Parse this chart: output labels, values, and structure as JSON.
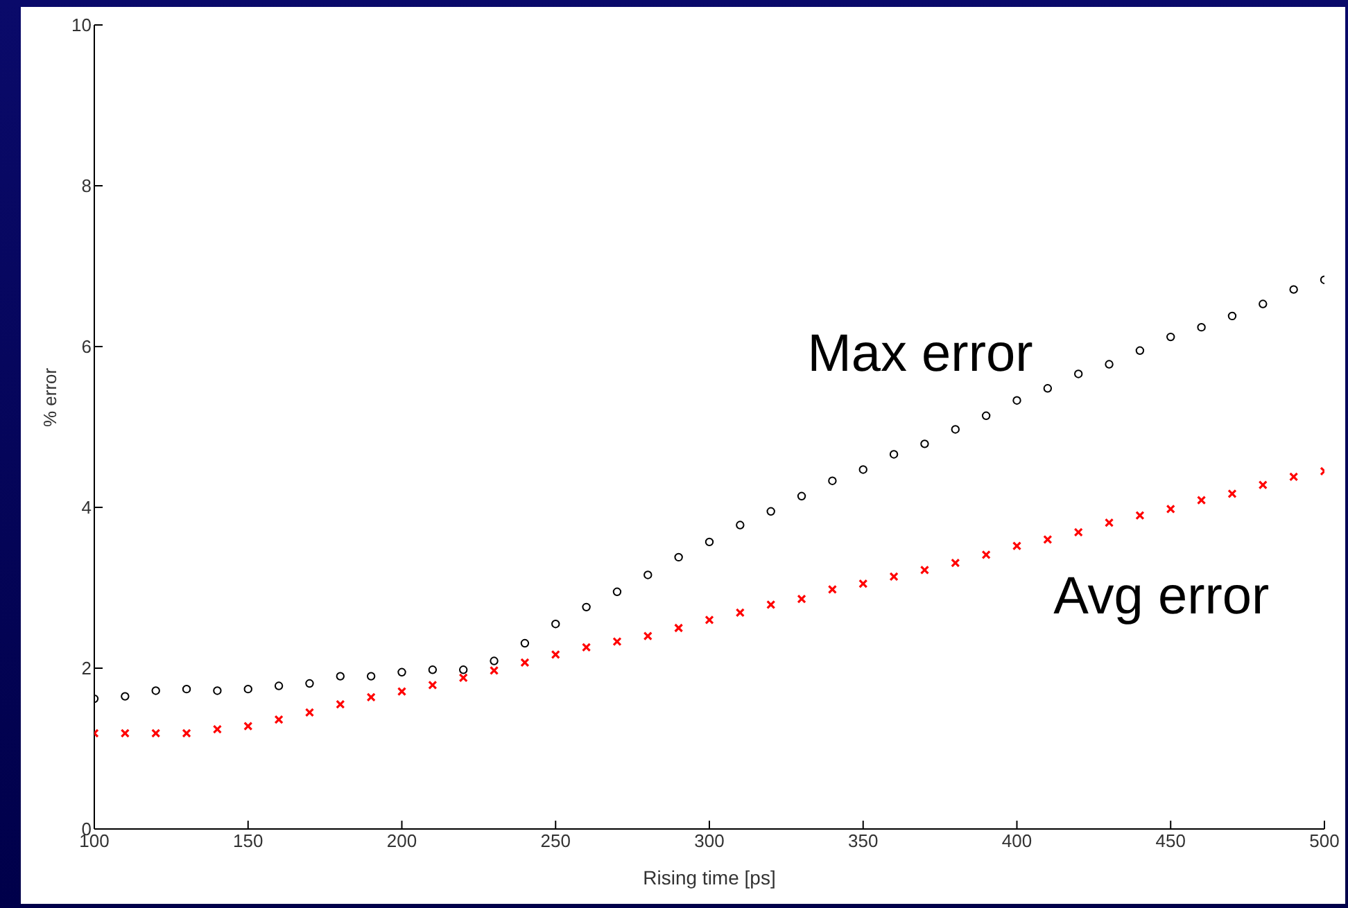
{
  "chart_data": {
    "type": "scatter",
    "xlabel": "Rising time [ps]",
    "ylabel": "% error",
    "x": [
      100,
      110,
      120,
      130,
      140,
      150,
      160,
      170,
      180,
      190,
      200,
      210,
      220,
      230,
      240,
      250,
      260,
      270,
      280,
      290,
      300,
      310,
      320,
      330,
      340,
      350,
      360,
      370,
      380,
      390,
      400,
      410,
      420,
      430,
      440,
      450,
      460,
      470,
      480,
      490,
      500
    ],
    "series": [
      {
        "name": "Max error",
        "color": "#000000",
        "marker": "circle",
        "values": [
          1.62,
          1.65,
          1.72,
          1.74,
          1.72,
          1.74,
          1.78,
          1.81,
          1.9,
          1.9,
          1.95,
          1.98,
          1.98,
          2.09,
          2.31,
          2.55,
          2.76,
          2.95,
          3.16,
          3.38,
          3.57,
          3.78,
          3.95,
          4.14,
          4.33,
          4.47,
          4.66,
          4.79,
          4.97,
          5.14,
          5.33,
          5.48,
          5.66,
          5.78,
          5.95,
          6.12,
          6.24,
          6.38,
          6.53,
          6.71,
          6.83
        ]
      },
      {
        "name": "Avg error",
        "color": "#ff0000",
        "marker": "cross",
        "values": [
          1.19,
          1.19,
          1.19,
          1.19,
          1.24,
          1.28,
          1.36,
          1.45,
          1.55,
          1.64,
          1.71,
          1.79,
          1.88,
          1.97,
          2.07,
          2.17,
          2.26,
          2.33,
          2.4,
          2.5,
          2.6,
          2.69,
          2.79,
          2.86,
          2.98,
          3.05,
          3.14,
          3.22,
          3.31,
          3.41,
          3.52,
          3.6,
          3.69,
          3.81,
          3.9,
          3.98,
          4.09,
          4.17,
          4.28,
          4.38,
          4.45
        ]
      }
    ],
    "xlim": [
      100,
      500
    ],
    "xticks": [
      100,
      150,
      200,
      250,
      300,
      350,
      400,
      450,
      500
    ],
    "ylim": [
      0,
      10
    ],
    "yticks": [
      0,
      2,
      4,
      6,
      8,
      10
    ],
    "grid": false,
    "legend": false
  }
}
